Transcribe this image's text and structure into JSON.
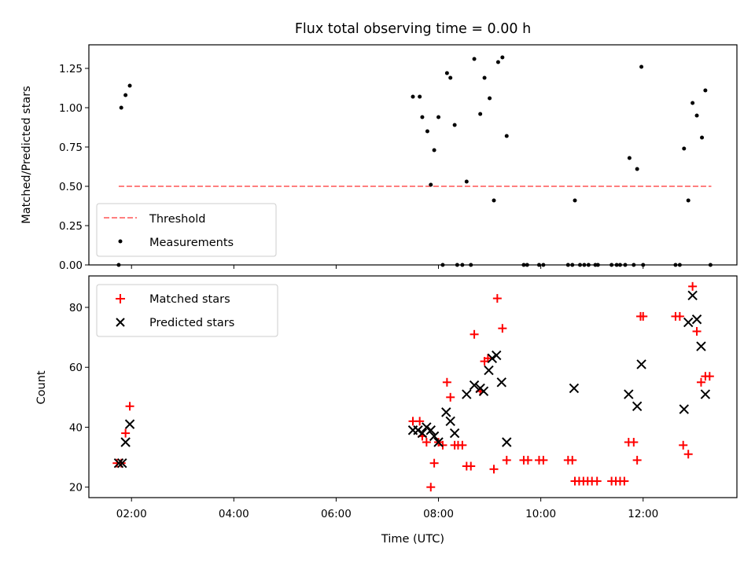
{
  "chart_data": [
    {
      "type": "scatter",
      "title": "Flux total observing time = 0.00 h",
      "xlabel": "",
      "ylabel": "Matched/Predicted stars",
      "xlim": [
        "01:10",
        "13:50"
      ],
      "ylim": [
        0,
        1.4
      ],
      "x_ticks": [
        "02:00",
        "04:00",
        "06:00",
        "08:00",
        "10:00",
        "12:00"
      ],
      "y_ticks": [
        "0.00",
        "0.25",
        "0.50",
        "0.75",
        "1.00",
        "1.25"
      ],
      "legend": {
        "placement": "lower-left",
        "entries": [
          "Threshold",
          "Measurements"
        ]
      },
      "colors": {
        "threshold": "#ff7f7f",
        "measurements": "#000000"
      },
      "series": [
        {
          "name": "Threshold",
          "kind": "dashed-line",
          "points": [
            [
              "01:45",
              0.5
            ],
            [
              "13:20",
              0.5
            ]
          ]
        },
        {
          "name": "Measurements",
          "kind": "dots",
          "points": [
            [
              "01:45",
              0.0
            ],
            [
              "01:48",
              1.0
            ],
            [
              "01:53",
              1.08
            ],
            [
              "01:58",
              1.14
            ],
            [
              "07:30",
              1.07
            ],
            [
              "07:38",
              1.07
            ],
            [
              "07:41",
              0.94
            ],
            [
              "07:47",
              0.85
            ],
            [
              "07:51",
              0.51
            ],
            [
              "07:55",
              0.73
            ],
            [
              "08:00",
              0.94
            ],
            [
              "08:05",
              0.0
            ],
            [
              "08:10",
              1.22
            ],
            [
              "08:14",
              1.19
            ],
            [
              "08:19",
              0.89
            ],
            [
              "08:22",
              0.0
            ],
            [
              "08:28",
              0.0
            ],
            [
              "08:33",
              0.53
            ],
            [
              "08:38",
              0.0
            ],
            [
              "08:42",
              1.31
            ],
            [
              "08:49",
              0.96
            ],
            [
              "08:54",
              1.19
            ],
            [
              "09:00",
              1.06
            ],
            [
              "09:05",
              0.41
            ],
            [
              "09:10",
              1.29
            ],
            [
              "09:15",
              1.32
            ],
            [
              "09:20",
              0.82
            ],
            [
              "09:40",
              0.0
            ],
            [
              "09:44",
              0.0
            ],
            [
              "09:58",
              0.0
            ],
            [
              "10:03",
              0.0
            ],
            [
              "10:32",
              0.0
            ],
            [
              "10:37",
              0.0
            ],
            [
              "10:40",
              0.41
            ],
            [
              "10:46",
              0.0
            ],
            [
              "10:51",
              0.0
            ],
            [
              "10:56",
              0.0
            ],
            [
              "11:04",
              0.0
            ],
            [
              "11:07",
              0.0
            ],
            [
              "11:23",
              0.0
            ],
            [
              "11:29",
              0.0
            ],
            [
              "11:33",
              0.0
            ],
            [
              "11:39",
              0.0
            ],
            [
              "11:44",
              0.68
            ],
            [
              "11:49",
              0.0
            ],
            [
              "11:53",
              0.61
            ],
            [
              "11:58",
              1.26
            ],
            [
              "12:00",
              0.0
            ],
            [
              "12:38",
              0.0
            ],
            [
              "12:43",
              0.0
            ],
            [
              "12:48",
              0.74
            ],
            [
              "12:53",
              0.41
            ],
            [
              "12:58",
              1.03
            ],
            [
              "13:03",
              0.95
            ],
            [
              "13:09",
              0.81
            ],
            [
              "13:13",
              1.11
            ],
            [
              "13:19",
              0.0
            ]
          ]
        }
      ]
    },
    {
      "type": "scatter",
      "title": "",
      "xlabel": "Time (UTC)",
      "ylabel": "Count",
      "xlim": [
        "01:10",
        "13:50"
      ],
      "ylim": [
        16.5,
        90.5
      ],
      "x_ticks": [
        "02:00",
        "04:00",
        "06:00",
        "08:00",
        "10:00",
        "12:00"
      ],
      "y_ticks": [
        "20",
        "40",
        "60",
        "80"
      ],
      "legend": {
        "placement": "upper-left",
        "entries": [
          "Matched stars",
          "Predicted stars"
        ]
      },
      "colors": {
        "matched": "#ff0000",
        "predicted": "#000000"
      },
      "series": [
        {
          "name": "Matched stars",
          "marker": "plus",
          "points": [
            [
              "01:43",
              28
            ],
            [
              "01:48",
              28
            ],
            [
              "01:53",
              38
            ],
            [
              "01:58",
              47
            ],
            [
              "07:30",
              42
            ],
            [
              "07:38",
              42
            ],
            [
              "07:41",
              37
            ],
            [
              "07:46",
              35
            ],
            [
              "07:51",
              20
            ],
            [
              "07:55",
              28
            ],
            [
              "08:00",
              35
            ],
            [
              "08:05",
              34
            ],
            [
              "08:10",
              55
            ],
            [
              "08:14",
              50
            ],
            [
              "08:19",
              34
            ],
            [
              "08:23",
              34
            ],
            [
              "08:28",
              34
            ],
            [
              "08:33",
              27
            ],
            [
              "08:38",
              27
            ],
            [
              "08:42",
              71
            ],
            [
              "08:49",
              52
            ],
            [
              "08:54",
              62
            ],
            [
              "08:58",
              63
            ],
            [
              "09:05",
              26
            ],
            [
              "09:09",
              83
            ],
            [
              "09:15",
              73
            ],
            [
              "09:20",
              29
            ],
            [
              "09:40",
              29
            ],
            [
              "09:45",
              29
            ],
            [
              "09:58",
              29
            ],
            [
              "10:03",
              29
            ],
            [
              "10:32",
              29
            ],
            [
              "10:37",
              29
            ],
            [
              "10:40",
              22
            ],
            [
              "10:45",
              22
            ],
            [
              "10:50",
              22
            ],
            [
              "10:55",
              22
            ],
            [
              "11:00",
              22
            ],
            [
              "11:06",
              22
            ],
            [
              "11:23",
              22
            ],
            [
              "11:28",
              22
            ],
            [
              "11:33",
              22
            ],
            [
              "11:38",
              22
            ],
            [
              "11:43",
              35
            ],
            [
              "11:49",
              35
            ],
            [
              "11:53",
              29
            ],
            [
              "11:57",
              77
            ],
            [
              "12:00",
              77
            ],
            [
              "12:38",
              77
            ],
            [
              "12:43",
              77
            ],
            [
              "12:47",
              34
            ],
            [
              "12:53",
              31
            ],
            [
              "12:58",
              87
            ],
            [
              "13:03",
              72
            ],
            [
              "13:08",
              55
            ],
            [
              "13:13",
              57
            ],
            [
              "13:18",
              57
            ]
          ]
        },
        {
          "name": "Predicted stars",
          "marker": "x",
          "points": [
            [
              "01:45",
              28
            ],
            [
              "01:49",
              28
            ],
            [
              "01:53",
              35
            ],
            [
              "01:58",
              41
            ],
            [
              "07:30",
              39
            ],
            [
              "07:36",
              39
            ],
            [
              "07:41",
              38
            ],
            [
              "07:46",
              40
            ],
            [
              "07:51",
              39
            ],
            [
              "07:55",
              37
            ],
            [
              "08:00",
              35
            ],
            [
              "08:09",
              45
            ],
            [
              "08:14",
              42
            ],
            [
              "08:19",
              38
            ],
            [
              "08:33",
              51
            ],
            [
              "08:42",
              54
            ],
            [
              "08:49",
              53
            ],
            [
              "08:53",
              52
            ],
            [
              "08:59",
              59
            ],
            [
              "09:03",
              63
            ],
            [
              "09:08",
              64
            ],
            [
              "09:14",
              55
            ],
            [
              "09:20",
              35
            ],
            [
              "10:39",
              53
            ],
            [
              "11:43",
              51
            ],
            [
              "11:53",
              47
            ],
            [
              "11:58",
              61
            ],
            [
              "12:48",
              46
            ],
            [
              "12:53",
              75
            ],
            [
              "12:58",
              84
            ],
            [
              "13:03",
              76
            ],
            [
              "13:08",
              67
            ],
            [
              "13:13",
              51
            ]
          ]
        }
      ]
    }
  ]
}
